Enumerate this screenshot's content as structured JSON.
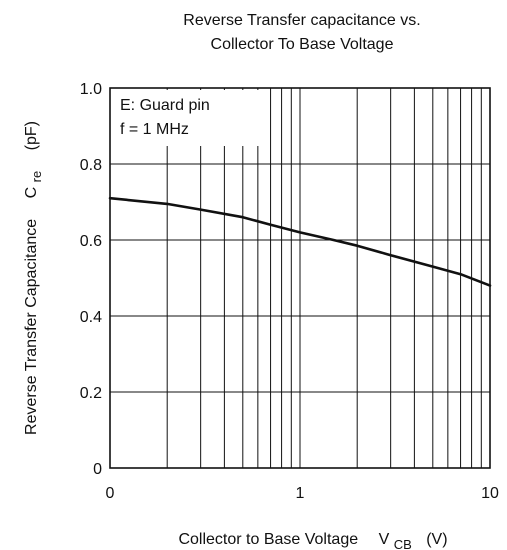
{
  "chart_data": {
    "type": "line",
    "title_lines": [
      "Reverse Transfer capacitance vs.",
      "Collector To Base Voltage"
    ],
    "xlabel": {
      "text": "Collector to Base Voltage",
      "symbol": "V",
      "symbol_sub": "CB",
      "unit": "(V)"
    },
    "ylabel": {
      "text": "Reverse Transfer Capacitance",
      "symbol": "C",
      "symbol_sub": "re",
      "unit": "(pF)"
    },
    "x_scale": "log-style (0.1 to 10, 2 decades; first tick labelled 0)",
    "x_ticks": [
      {
        "value": 0.1,
        "label": "0"
      },
      {
        "value": 1,
        "label": "1"
      },
      {
        "value": 10,
        "label": "10"
      }
    ],
    "y_ticks": [
      {
        "value": 0,
        "label": "0"
      },
      {
        "value": 0.2,
        "label": "0.2"
      },
      {
        "value": 0.4,
        "label": "0.4"
      },
      {
        "value": 0.6,
        "label": "0.6"
      },
      {
        "value": 0.8,
        "label": "0.8"
      },
      {
        "value": 1.0,
        "label": "1.0"
      }
    ],
    "xlim": [
      0.1,
      10
    ],
    "ylim": [
      0,
      1.0
    ],
    "grid": true,
    "annotations": [
      "E: Guard pin",
      "f = 1 MHz"
    ],
    "series": [
      {
        "x": [
          0.1,
          0.2,
          0.3,
          0.5,
          0.7,
          1.0,
          1.5,
          2,
          3,
          5,
          7,
          10
        ],
        "y": [
          0.71,
          0.695,
          0.68,
          0.66,
          0.64,
          0.62,
          0.6,
          0.585,
          0.56,
          0.53,
          0.51,
          0.48
        ]
      }
    ]
  }
}
